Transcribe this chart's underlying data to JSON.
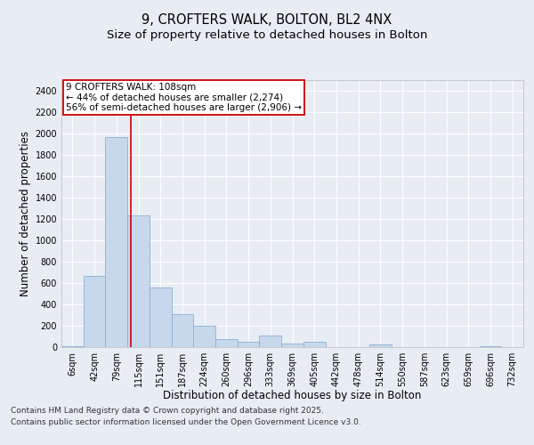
{
  "title_line1": "9, CROFTERS WALK, BOLTON, BL2 4NX",
  "title_line2": "Size of property relative to detached houses in Bolton",
  "xlabel": "Distribution of detached houses by size in Bolton",
  "ylabel": "Number of detached properties",
  "bar_color": "#c8d8ec",
  "bar_edge_color": "#8aafd4",
  "background_color": "#e8edf4",
  "grid_color": "#ffffff",
  "annotation_box_color": "#cc0000",
  "vline_color": "#cc0000",
  "categories": [
    "6sqm",
    "42sqm",
    "79sqm",
    "115sqm",
    "151sqm",
    "187sqm",
    "224sqm",
    "260sqm",
    "296sqm",
    "333sqm",
    "369sqm",
    "405sqm",
    "442sqm",
    "478sqm",
    "514sqm",
    "550sqm",
    "587sqm",
    "623sqm",
    "659sqm",
    "696sqm",
    "732sqm"
  ],
  "values": [
    10,
    670,
    1970,
    1230,
    560,
    310,
    200,
    75,
    50,
    110,
    35,
    50,
    0,
    0,
    25,
    0,
    0,
    0,
    0,
    5,
    0
  ],
  "ylim": [
    0,
    2500
  ],
  "yticks": [
    0,
    200,
    400,
    600,
    800,
    1000,
    1200,
    1400,
    1600,
    1800,
    2000,
    2200,
    2400
  ],
  "vline_pos": 2.67,
  "annotation_text": "9 CROFTERS WALK: 108sqm\n← 44% of detached houses are smaller (2,274)\n56% of semi-detached houses are larger (2,906) →",
  "footer_line1": "Contains HM Land Registry data © Crown copyright and database right 2025.",
  "footer_line2": "Contains public sector information licensed under the Open Government Licence v3.0.",
  "title_fontsize": 10.5,
  "subtitle_fontsize": 9.5,
  "axis_label_fontsize": 8.5,
  "tick_fontsize": 7,
  "annotation_fontsize": 7.5,
  "footer_fontsize": 6.5
}
